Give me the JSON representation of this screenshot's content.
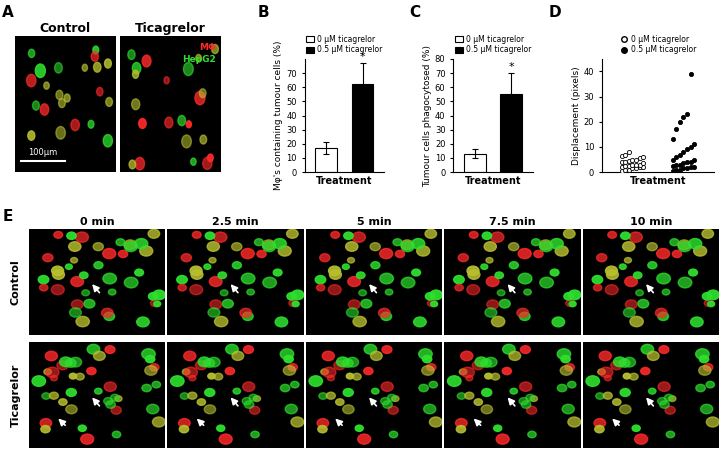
{
  "panel_labels": [
    "A",
    "B",
    "C",
    "D",
    "E"
  ],
  "panel_a": {
    "images": [
      "Control",
      "Ticagrelor"
    ],
    "channels": [
      {
        "name": "MΦ",
        "color": "#ff2a2a"
      },
      {
        "name": "HepG2",
        "color": "#2ee02e"
      }
    ],
    "scale_bar": "100μm"
  },
  "chart_data": [
    {
      "type": "bar",
      "y_label": "Mφ's containing tumour cells (%)",
      "x_label": "Treatment",
      "series": [
        {
          "name": "0 μM ticagrelor",
          "color": "#ffffff",
          "values": [
            17
          ],
          "error": [
            4
          ]
        },
        {
          "name": "0.5 μM ticagrelor",
          "color": "#000000",
          "values": [
            62
          ],
          "error": [
            15
          ],
          "annotation": "*"
        }
      ],
      "ylim": [
        0,
        80
      ],
      "yticks": [
        0,
        10,
        20,
        30,
        40,
        50,
        60,
        70
      ],
      "grid": false,
      "legend": "top",
      "tick_labels": "y"
    },
    {
      "type": "bar",
      "y_label": "Tumour cells phagocytosed (%)",
      "x_label": "Treatment",
      "series": [
        {
          "name": "0 μM ticagrelor",
          "color": "#ffffff",
          "values": [
            13
          ],
          "error": [
            3
          ]
        },
        {
          "name": "0.5 μM ticagrelor",
          "color": "#000000",
          "values": [
            55
          ],
          "error": [
            15
          ],
          "annotation": "*"
        }
      ],
      "ylim": [
        0,
        80
      ],
      "yticks": [
        0,
        10,
        20,
        30,
        40,
        50,
        60,
        70,
        80
      ],
      "grid": false,
      "legend": "top",
      "tick_labels": "y"
    },
    {
      "type": "scatter",
      "y_label": "Displacement (pixels)",
      "x_label": "Treatment",
      "series": [
        {
          "name": "0 μM ticagrelor",
          "color": "#ffffff",
          "marker": "o",
          "values": [
            0.5,
            1,
            1,
            1.5,
            1.5,
            2,
            2,
            2,
            2.5,
            2.5,
            3,
            3,
            3,
            3.5,
            4,
            4,
            4.5,
            5,
            5,
            5.5,
            6,
            6.5,
            7,
            8
          ]
        },
        {
          "name": "0.5 μM ticagrelor",
          "color": "#000000",
          "marker": "o",
          "values": [
            0.5,
            1,
            1,
            1.5,
            1.5,
            2,
            2,
            2.5,
            3,
            3,
            3.5,
            4,
            4,
            5,
            5,
            6,
            7,
            8,
            9,
            10,
            11,
            13,
            17,
            20,
            22,
            23,
            39
          ]
        }
      ],
      "ylim": [
        0,
        45
      ],
      "yticks": [
        0,
        10,
        20,
        30,
        40
      ],
      "grid": false,
      "legend": "top",
      "tick_labels": "y"
    }
  ],
  "panel_e": {
    "times": [
      "0 min",
      "2.5 min",
      "5 min",
      "7.5 min",
      "10 min"
    ],
    "rows": [
      "Control",
      "Ticagrelor"
    ]
  }
}
